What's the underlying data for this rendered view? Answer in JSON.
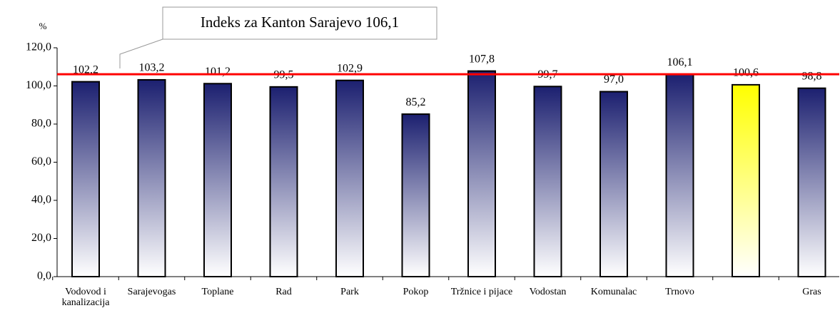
{
  "chart_data": {
    "type": "bar",
    "annotation": "Indeks za Kanton Sarajevo 106,1",
    "y_label": "%",
    "categories": [
      "Vodovod i kanalizacija",
      "Sarajevogas",
      "Toplane",
      "Rad",
      "Park",
      "Pokop",
      "Tržnice i pijace",
      "Vodostan",
      "Komunalac",
      "Trnovo",
      null,
      "Gras"
    ],
    "values": [
      102.2,
      103.2,
      101.2,
      99.5,
      102.9,
      85.2,
      107.8,
      99.7,
      97.0,
      106.1,
      100.6,
      98.8
    ],
    "value_labels": [
      "102,2",
      "103,2",
      "101,2",
      "99,5",
      "102,9",
      "85,2",
      "107,8",
      "99,7",
      "97,0",
      "106,1",
      "100,6",
      "98,8"
    ],
    "colors": [
      "#1c2070",
      "#1c2070",
      "#1c2070",
      "#1c2070",
      "#1c2070",
      "#1c2070",
      "#1c2070",
      "#1c2070",
      "#1c2070",
      "#1c2070",
      "#ffff00",
      "#1c2070"
    ],
    "reference_line": {
      "value": 106.1,
      "color": "#ff0000"
    },
    "ylim": [
      0,
      120
    ],
    "yticks": [
      {
        "value": 0,
        "label": "0,0"
      },
      {
        "value": 20,
        "label": "20,0"
      },
      {
        "value": 40,
        "label": "40,0"
      },
      {
        "value": 60,
        "label": "60,0"
      },
      {
        "value": 80,
        "label": "80,0"
      },
      {
        "value": 100,
        "label": "100,0"
      },
      {
        "value": 120,
        "label": "120,0"
      }
    ]
  }
}
